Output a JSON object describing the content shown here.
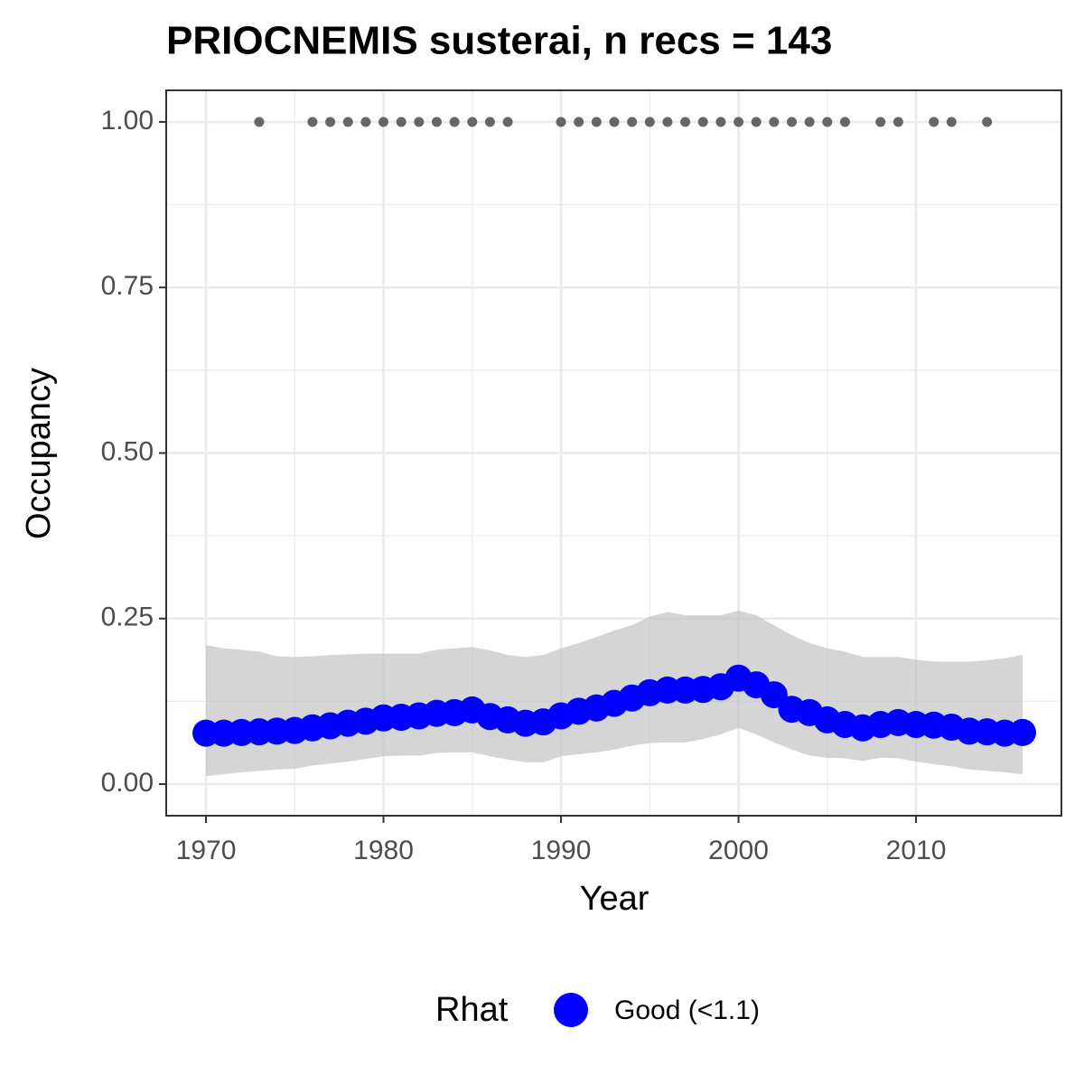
{
  "chart_data": {
    "type": "line",
    "title": "PRIOCNEMIS susterai, n recs = 143",
    "x_label": "Year",
    "y_label": "Occupancy",
    "x": [
      1970,
      1971,
      1972,
      1973,
      1974,
      1975,
      1976,
      1977,
      1978,
      1979,
      1980,
      1981,
      1982,
      1983,
      1984,
      1985,
      1986,
      1987,
      1988,
      1989,
      1990,
      1991,
      1992,
      1993,
      1994,
      1995,
      1996,
      1997,
      1998,
      1999,
      2000,
      2001,
      2002,
      2003,
      2004,
      2005,
      2006,
      2007,
      2008,
      2009,
      2010,
      2011,
      2012,
      2013,
      2014,
      2015,
      2016
    ],
    "series": [
      {
        "name": "Good (<1.1)",
        "color": "#0000ff",
        "values": [
          0.077,
          0.077,
          0.078,
          0.079,
          0.08,
          0.081,
          0.085,
          0.088,
          0.092,
          0.095,
          0.1,
          0.101,
          0.103,
          0.107,
          0.108,
          0.112,
          0.102,
          0.097,
          0.092,
          0.094,
          0.103,
          0.11,
          0.115,
          0.122,
          0.13,
          0.138,
          0.142,
          0.142,
          0.143,
          0.147,
          0.16,
          0.15,
          0.135,
          0.113,
          0.108,
          0.097,
          0.09,
          0.085,
          0.09,
          0.093,
          0.09,
          0.089,
          0.086,
          0.08,
          0.079,
          0.077,
          0.078
        ]
      }
    ],
    "band": {
      "color": "#bebebe",
      "upper": [
        0.21,
        0.205,
        0.203,
        0.2,
        0.193,
        0.192,
        0.193,
        0.195,
        0.196,
        0.197,
        0.197,
        0.197,
        0.197,
        0.203,
        0.205,
        0.207,
        0.202,
        0.195,
        0.192,
        0.195,
        0.205,
        0.213,
        0.222,
        0.232,
        0.24,
        0.253,
        0.26,
        0.255,
        0.255,
        0.255,
        0.262,
        0.255,
        0.24,
        0.225,
        0.213,
        0.205,
        0.2,
        0.192,
        0.192,
        0.192,
        0.188,
        0.185,
        0.185,
        0.185,
        0.187,
        0.19,
        0.195
      ],
      "lower": [
        0.012,
        0.015,
        0.018,
        0.02,
        0.022,
        0.023,
        0.028,
        0.031,
        0.034,
        0.038,
        0.042,
        0.043,
        0.043,
        0.047,
        0.048,
        0.048,
        0.042,
        0.037,
        0.033,
        0.033,
        0.042,
        0.045,
        0.048,
        0.052,
        0.058,
        0.062,
        0.063,
        0.063,
        0.068,
        0.075,
        0.085,
        0.075,
        0.063,
        0.052,
        0.043,
        0.04,
        0.039,
        0.035,
        0.04,
        0.039,
        0.034,
        0.03,
        0.027,
        0.022,
        0.02,
        0.018,
        0.015
      ]
    },
    "observed": {
      "color": "#666666",
      "x": [
        1973,
        1976,
        1977,
        1978,
        1979,
        1980,
        1981,
        1982,
        1983,
        1984,
        1985,
        1986,
        1987,
        1990,
        1991,
        1992,
        1993,
        1994,
        1995,
        1996,
        1997,
        1998,
        1999,
        2000,
        2001,
        2002,
        2003,
        2004,
        2005,
        2006,
        2008,
        2009,
        2011,
        2012,
        2014
      ],
      "values": [
        1,
        1,
        1,
        1,
        1,
        1,
        1,
        1,
        1,
        1,
        1,
        1,
        1,
        1,
        1,
        1,
        1,
        1,
        1,
        1,
        1,
        1,
        1,
        1,
        1,
        1,
        1,
        1,
        1,
        1,
        1,
        1,
        1,
        1,
        1
      ]
    },
    "legend_title": "Rhat",
    "legend_position": "bottom",
    "grid": true,
    "xlim": [
      1967.76,
      2018.19
    ],
    "xticks": [
      1970,
      1980,
      1990,
      2000,
      2010
    ],
    "ylim": [
      -0.0477,
      1.0477
    ],
    "yticks": [
      {
        "value": 0,
        "label": "0.00"
      },
      {
        "value": 0.25,
        "label": "0.25"
      },
      {
        "value": 0.5,
        "label": "0.50"
      },
      {
        "value": 0.75,
        "label": "0.75"
      },
      {
        "value": 1,
        "label": "1.00"
      }
    ]
  }
}
